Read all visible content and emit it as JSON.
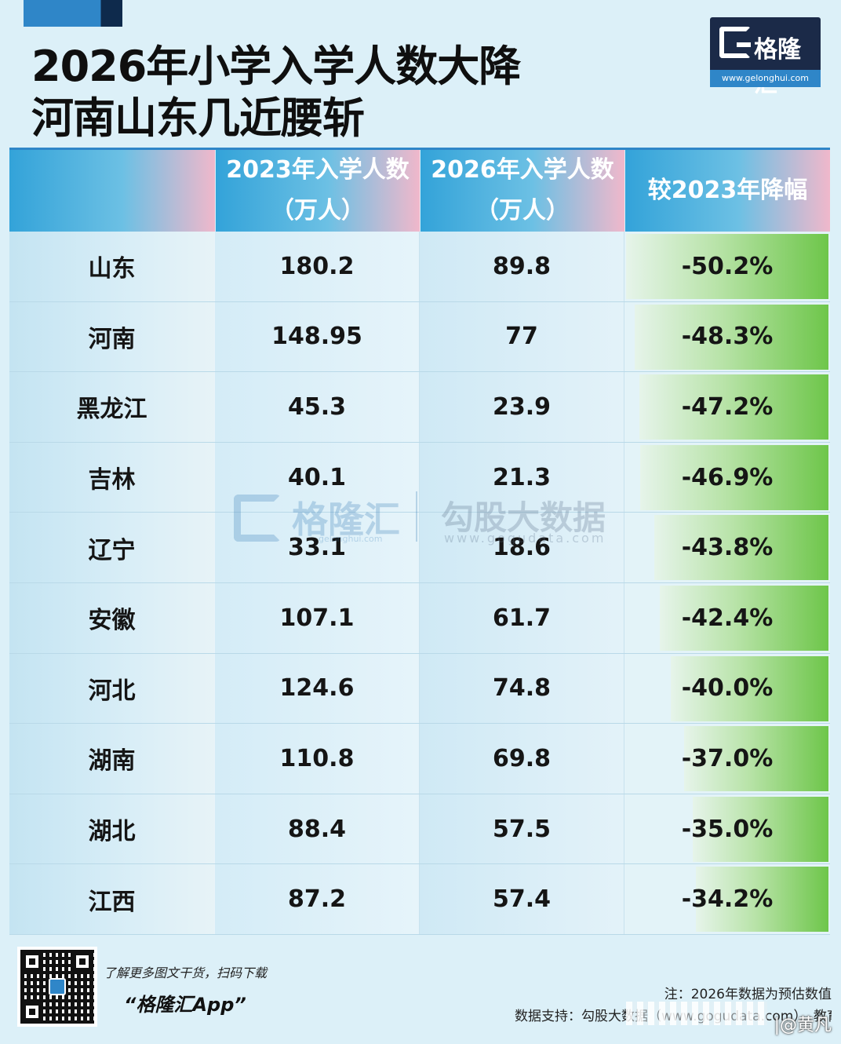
{
  "title_line1": "2026年小学入学人数大降",
  "title_line2": "河南山东几近腰斩",
  "logo": {
    "text": "格隆汇",
    "url": "www.gelonghui.com"
  },
  "chart_data": {
    "type": "table",
    "columns": [
      "",
      "2023年入学人数\n（万人）",
      "2026年入学人数\n（万人）",
      "较2023年降幅"
    ],
    "header": {
      "col1_line1": "2023年入学人数",
      "col1_line2": "（万人）",
      "col2_line1": "2026年入学人数",
      "col2_line2": "（万人）",
      "col3": "较2023年降幅"
    },
    "rows": [
      {
        "province": "山东",
        "y2023": "180.2",
        "y2026": "89.8",
        "decline": "-50.2%",
        "decline_value": 50.2
      },
      {
        "province": "河南",
        "y2023": "148.95",
        "y2026": "77",
        "decline": "-48.3%",
        "decline_value": 48.3
      },
      {
        "province": "黑龙江",
        "y2023": "45.3",
        "y2026": "23.9",
        "decline": "-47.2%",
        "decline_value": 47.2
      },
      {
        "province": "吉林",
        "y2023": "40.1",
        "y2026": "21.3",
        "decline": "-46.9%",
        "decline_value": 46.9
      },
      {
        "province": "辽宁",
        "y2023": "33.1",
        "y2026": "18.6",
        "decline": "-43.8%",
        "decline_value": 43.8
      },
      {
        "province": "安徽",
        "y2023": "107.1",
        "y2026": "61.7",
        "decline": "-42.4%",
        "decline_value": 42.4
      },
      {
        "province": "河北",
        "y2023": "124.6",
        "y2026": "74.8",
        "decline": "-40.0%",
        "decline_value": 40.0
      },
      {
        "province": "湖南",
        "y2023": "110.8",
        "y2026": "69.8",
        "decline": "-37.0%",
        "decline_value": 37.0
      },
      {
        "province": "湖北",
        "y2023": "88.4",
        "y2026": "57.5",
        "decline": "-35.0%",
        "decline_value": 35.0
      },
      {
        "province": "江西",
        "y2023": "87.2",
        "y2026": "57.4",
        "decline": "-34.2%",
        "decline_value": 34.2
      }
    ]
  },
  "watermark": {
    "brand1": "格隆汇",
    "url1": "gelonghui.com",
    "brand2": "勾股大数据",
    "url2": "www.gogudata.com"
  },
  "footer": {
    "promo": "了解更多图文干货，扫码下载",
    "app": "“格隆汇App”",
    "note": "注：2026年数据为预估数值",
    "source": "数据支持：勾股大数据（www.gogudata.com）、教育部",
    "credit": "|@黄凡"
  }
}
